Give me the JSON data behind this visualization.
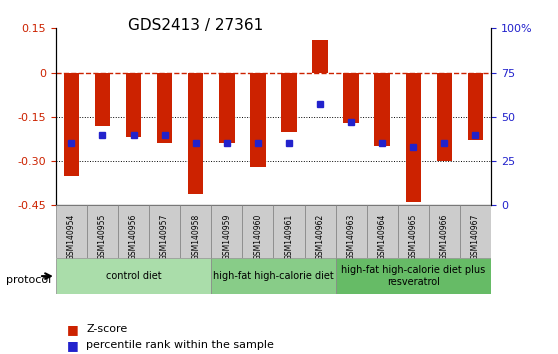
{
  "title": "GDS2413 / 27361",
  "samples": [
    "GSM140954",
    "GSM140955",
    "GSM140956",
    "GSM140957",
    "GSM140958",
    "GSM140959",
    "GSM140960",
    "GSM140961",
    "GSM140962",
    "GSM140963",
    "GSM140964",
    "GSM140965",
    "GSM140966",
    "GSM140967"
  ],
  "zscore": [
    -0.35,
    -0.18,
    -0.22,
    -0.24,
    -0.41,
    -0.24,
    -0.32,
    -0.2,
    0.11,
    -0.17,
    -0.25,
    -0.44,
    -0.3,
    -0.23
  ],
  "percentile_rank": [
    35,
    40,
    40,
    40,
    35,
    35,
    35,
    35,
    57,
    47,
    35,
    33,
    35,
    40
  ],
  "ylim_left": [
    -0.45,
    0.15
  ],
  "ylim_right": [
    0,
    100
  ],
  "bar_color": "#cc2200",
  "dot_color": "#2222cc",
  "dashed_color": "#cc2200",
  "grid_color": "#000000",
  "bg_plot": "#ffffff",
  "bg_xticklabels": "#cccccc",
  "groups": [
    {
      "label": "control diet",
      "start": 0,
      "end": 5,
      "color": "#aaddaa"
    },
    {
      "label": "high-fat high-calorie diet",
      "start": 5,
      "end": 9,
      "color": "#88cc88"
    },
    {
      "label": "high-fat high-calorie diet plus\nresveratrol",
      "start": 9,
      "end": 14,
      "color": "#66bb66"
    }
  ],
  "legend_items": [
    {
      "label": "Z-score",
      "color": "#cc2200",
      "marker": "s"
    },
    {
      "label": "percentile rank within the sample",
      "color": "#2222cc",
      "marker": "s"
    }
  ],
  "protocol_label": "protocol"
}
